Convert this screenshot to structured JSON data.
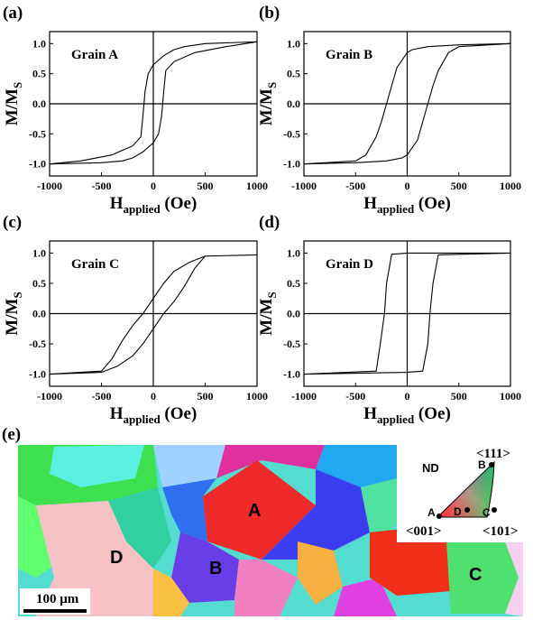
{
  "chart_data": [
    {
      "type": "line",
      "panel": "(a)",
      "annotation": "Grain A",
      "color": "#000000",
      "xlabel": {
        "main": "H",
        "sub": "applied",
        "suffix": " (Oe)"
      },
      "ylabel": {
        "main": "M/M",
        "sub": "S"
      },
      "x": [
        1000,
        500,
        300,
        200,
        100,
        0,
        -50,
        -80,
        -100,
        -120,
        -200,
        -400,
        -700,
        -1000,
        -500,
        -300,
        -200,
        -100,
        0,
        50,
        80,
        100,
        120,
        200,
        400,
        700,
        1000
      ],
      "values": [
        1.03,
        1.0,
        0.95,
        0.9,
        0.8,
        0.65,
        0.5,
        0.2,
        -0.2,
        -0.55,
        -0.7,
        -0.85,
        -0.95,
        -1.0,
        -0.98,
        -0.95,
        -0.9,
        -0.8,
        -0.65,
        -0.5,
        -0.2,
        0.2,
        0.55,
        0.7,
        0.85,
        0.95,
        1.03
      ],
      "xlim": [
        -1000,
        1000
      ],
      "xticks": [
        -1000,
        -500,
        0,
        500,
        1000
      ],
      "ylim": [
        -1.2,
        1.2
      ],
      "yticks": [
        {
          "value": -1,
          "label": "-1.0"
        },
        {
          "value": -0.5,
          "label": "-0.5"
        },
        {
          "value": 0,
          "label": "0.0"
        },
        {
          "value": 0.5,
          "label": "0.5"
        },
        {
          "value": 1,
          "label": "1.0"
        }
      ],
      "zero_lines": true
    },
    {
      "type": "line",
      "panel": "(b)",
      "annotation": "Grain B",
      "color": "#000000",
      "xlabel": {
        "main": "H",
        "sub": "applied",
        "suffix": " (Oe)"
      },
      "ylabel": {
        "main": "M/M",
        "sub": "S"
      },
      "x": [
        1000,
        500,
        200,
        50,
        0,
        -100,
        -150,
        -200,
        -250,
        -300,
        -400,
        -500,
        -1000,
        -500,
        -200,
        -50,
        0,
        100,
        150,
        200,
        250,
        300,
        400,
        500,
        1000
      ],
      "values": [
        1.0,
        0.98,
        0.95,
        0.9,
        0.85,
        0.6,
        0.3,
        0.0,
        -0.3,
        -0.55,
        -0.85,
        -0.95,
        -1.0,
        -0.98,
        -0.95,
        -0.9,
        -0.85,
        -0.6,
        -0.3,
        0.0,
        0.3,
        0.55,
        0.85,
        0.95,
        1.0
      ],
      "xlim": [
        -1000,
        1000
      ],
      "xticks": [
        -1000,
        -500,
        0,
        500,
        1000
      ],
      "ylim": [
        -1.2,
        1.2
      ],
      "yticks": [
        {
          "value": -1,
          "label": "-1.0"
        },
        {
          "value": -0.5,
          "label": "-0.5"
        },
        {
          "value": 0,
          "label": "0.0"
        },
        {
          "value": 0.5,
          "label": "0.5"
        },
        {
          "value": 1,
          "label": "1.0"
        }
      ],
      "zero_lines": true
    },
    {
      "type": "line",
      "panel": "(c)",
      "annotation": "Grain C",
      "color": "#000000",
      "xlabel": {
        "main": "H",
        "sub": "applied",
        "suffix": " (Oe)"
      },
      "ylabel": {
        "main": "M/M",
        "sub": "S"
      },
      "x": [
        1000,
        500,
        350,
        200,
        100,
        0,
        -100,
        -200,
        -300,
        -400,
        -500,
        -1000,
        -500,
        -350,
        -200,
        -100,
        0,
        100,
        200,
        300,
        400,
        500,
        1000
      ],
      "values": [
        0.97,
        0.95,
        0.85,
        0.7,
        0.5,
        0.25,
        0.0,
        -0.2,
        -0.45,
        -0.75,
        -0.95,
        -1.0,
        -0.97,
        -0.87,
        -0.7,
        -0.5,
        -0.25,
        0.0,
        0.2,
        0.45,
        0.75,
        0.95,
        0.97
      ],
      "xlim": [
        -1000,
        1000
      ],
      "xticks": [
        -1000,
        -500,
        0,
        500,
        1000
      ],
      "ylim": [
        -1.2,
        1.2
      ],
      "yticks": [
        {
          "value": -1,
          "label": "-1.0"
        },
        {
          "value": -0.5,
          "label": "-0.5"
        },
        {
          "value": 0,
          "label": "0.0"
        },
        {
          "value": 0.5,
          "label": "0.5"
        },
        {
          "value": 1,
          "label": "1.0"
        }
      ],
      "zero_lines": true
    },
    {
      "type": "line",
      "panel": "(d)",
      "annotation": "Grain D",
      "color": "#000000",
      "xlabel": {
        "main": "H",
        "sub": "applied",
        "suffix": " (Oe)"
      },
      "ylabel": {
        "main": "M/M",
        "sub": "S"
      },
      "x": [
        1000,
        0,
        -150,
        -200,
        -220,
        -260,
        -300,
        -1000,
        0,
        150,
        200,
        220,
        250,
        300,
        1000
      ],
      "values": [
        1.0,
        1.0,
        0.98,
        0.5,
        0.0,
        -0.5,
        -0.95,
        -1.0,
        -0.97,
        -0.95,
        -0.5,
        0.0,
        0.5,
        0.97,
        1.0
      ],
      "xlim": [
        -1000,
        1000
      ],
      "xticks": [
        -1000,
        -500,
        0,
        500,
        1000
      ],
      "ylim": [
        -1.2,
        1.2
      ],
      "yticks": [
        {
          "value": -1,
          "label": "-1.0"
        },
        {
          "value": -0.5,
          "label": "-0.5"
        },
        {
          "value": 0,
          "label": "0.0"
        },
        {
          "value": 0.5,
          "label": "0.5"
        },
        {
          "value": 1,
          "label": "1.0"
        }
      ],
      "zero_lines": true
    }
  ],
  "ebsd": {
    "label": "(e)",
    "grains": [
      "A",
      "B",
      "C",
      "D"
    ],
    "inset": {
      "nd": "ND",
      "poles": [
        "<001>",
        "<101>",
        "<111>"
      ],
      "points": [
        "A",
        "B",
        "C",
        "D"
      ]
    },
    "scale_bar": "100 μm"
  }
}
